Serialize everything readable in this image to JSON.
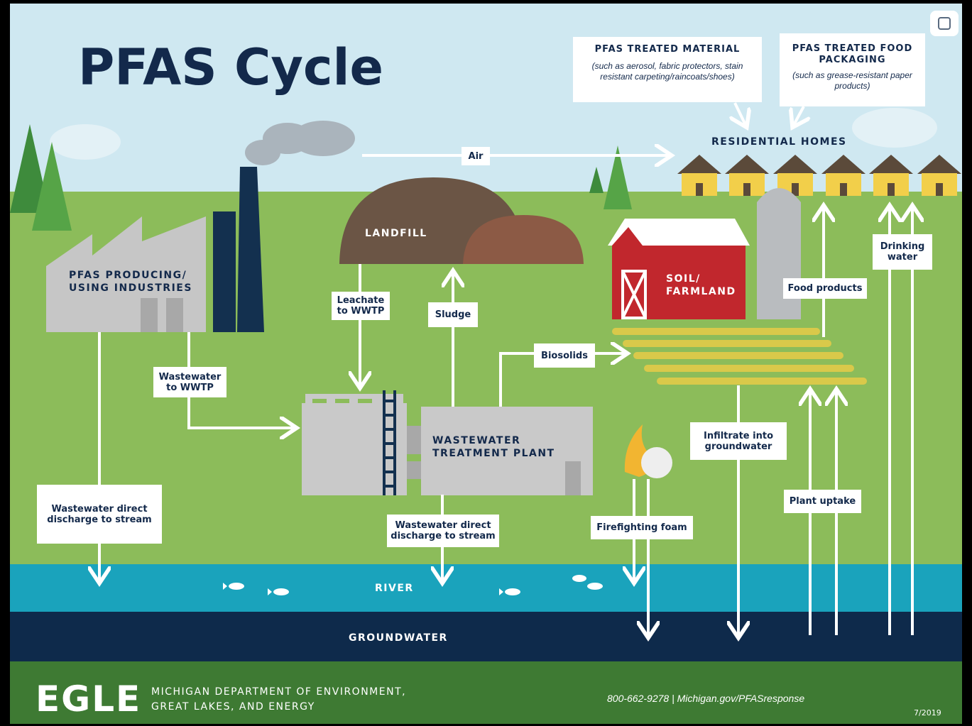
{
  "title": "PFAS Cycle",
  "sources": {
    "treated_material": {
      "title": "PFAS TREATED MATERIAL",
      "note": "(such as aerosol, fabric protectors, stain resistant carpeting/raincoats/shoes)"
    },
    "food_packaging": {
      "title": "PFAS TREATED FOOD PACKAGING",
      "note": "(such as grease-resistant paper products)"
    }
  },
  "places": {
    "residential": "RESIDENTIAL HOMES",
    "landfill": "LANDFILL",
    "industries": "PFAS PRODUCING/ USING INDUSTRIES",
    "farmland": "SOIL/ FARMLAND",
    "wwtp": "WASTEWATER TREATMENT PLANT",
    "river": "RIVER",
    "groundwater": "GROUNDWATER"
  },
  "flows": {
    "air": "Air",
    "leachate": "Leachate to WWTP",
    "sludge": "Sludge",
    "biosolids": "Biosolids",
    "wastewater_to_wwtp": "Wastewater to WWTP",
    "industry_discharge": "Wastewater direct discharge to stream",
    "wwtp_discharge": "Wastewater direct discharge to stream",
    "firefighting": "Firefighting foam",
    "infiltrate": "Infiltrate into groundwater",
    "plant_uptake": "Plant uptake",
    "food_products": "Food products",
    "drinking_water": "Drinking water"
  },
  "footer": {
    "logo": "EGLE",
    "agency": "MICHIGAN DEPARTMENT OF ENVIRONMENT, GREAT LAKES, AND ENERGY",
    "contact": "800-662-9278 | Michigan.gov/PFASresponse",
    "date": "7/2019"
  }
}
